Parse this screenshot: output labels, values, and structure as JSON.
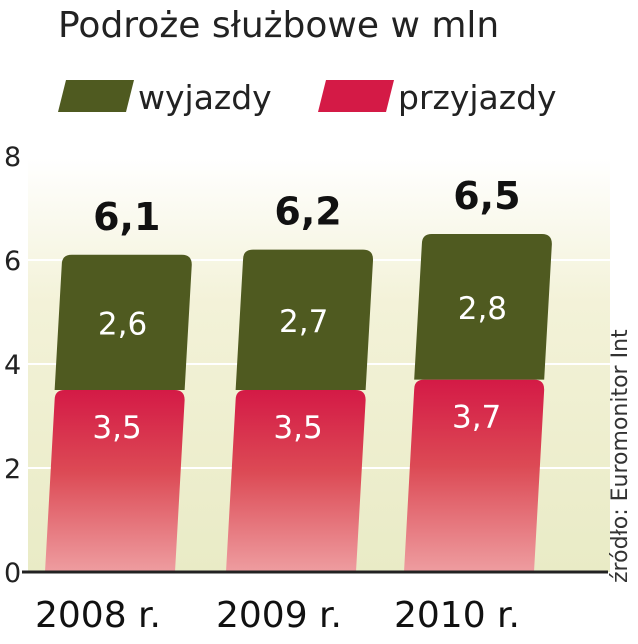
{
  "chart_data": {
    "type": "bar",
    "stacked": true,
    "title": "Podroże służbowe w mln",
    "categories": [
      "2008 r.",
      "2009 r.",
      "2010 r."
    ],
    "series": [
      {
        "name": "przyjazdy",
        "values": [
          3.5,
          3.5,
          3.7
        ],
        "labels": [
          "3,5",
          "3,5",
          "3,7"
        ],
        "color": "#d41a46"
      },
      {
        "name": "wyjazdy",
        "values": [
          2.6,
          2.7,
          2.8
        ],
        "labels": [
          "2,6",
          "2,7",
          "2,8"
        ],
        "color": "#4f5a20"
      }
    ],
    "totals": [
      6.1,
      6.2,
      6.5
    ],
    "total_labels": [
      "6,1",
      "6,2",
      "6,5"
    ],
    "ylim": [
      0,
      8
    ],
    "yticks": [
      0,
      2,
      4,
      6,
      8
    ],
    "ytick_labels": [
      "0",
      "2",
      "4",
      "6",
      "8"
    ],
    "grid": true,
    "legend_position": "top",
    "legend_order": [
      "wyjazdy",
      "przyjazdy"
    ],
    "source": "źródło: Euromonitor Int"
  }
}
